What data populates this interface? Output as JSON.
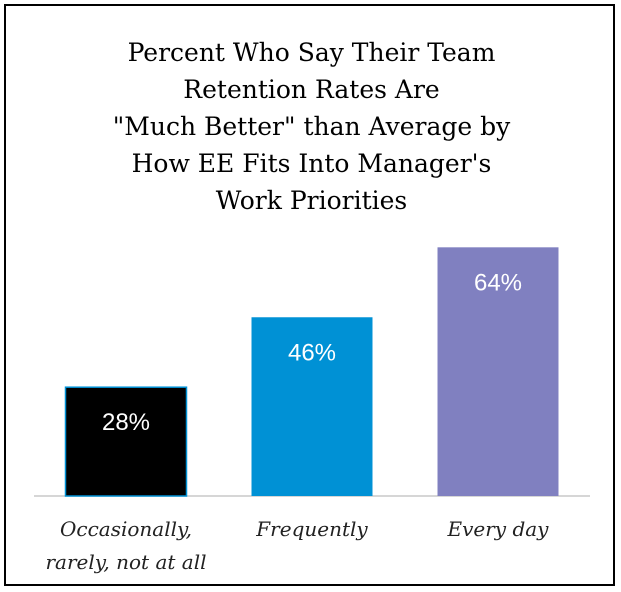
{
  "chart_data": {
    "type": "bar",
    "title": "Percent Who Say Their Team\nRetention Rates Are\n\"Much Better\" than Average by\nHow EE Fits Into Manager's\nWork Priorities",
    "categories": [
      [
        "Occasionally,",
        "rarely, not at all"
      ],
      [
        "Frequently"
      ],
      [
        "Every day"
      ]
    ],
    "values": [
      28,
      46,
      64
    ],
    "value_labels": [
      "28%",
      "46%",
      "64%"
    ],
    "colors": [
      "#000000",
      "#0091d5",
      "#8080c0"
    ],
    "ylim": [
      0,
      70
    ],
    "grid": false,
    "legend": "none"
  }
}
